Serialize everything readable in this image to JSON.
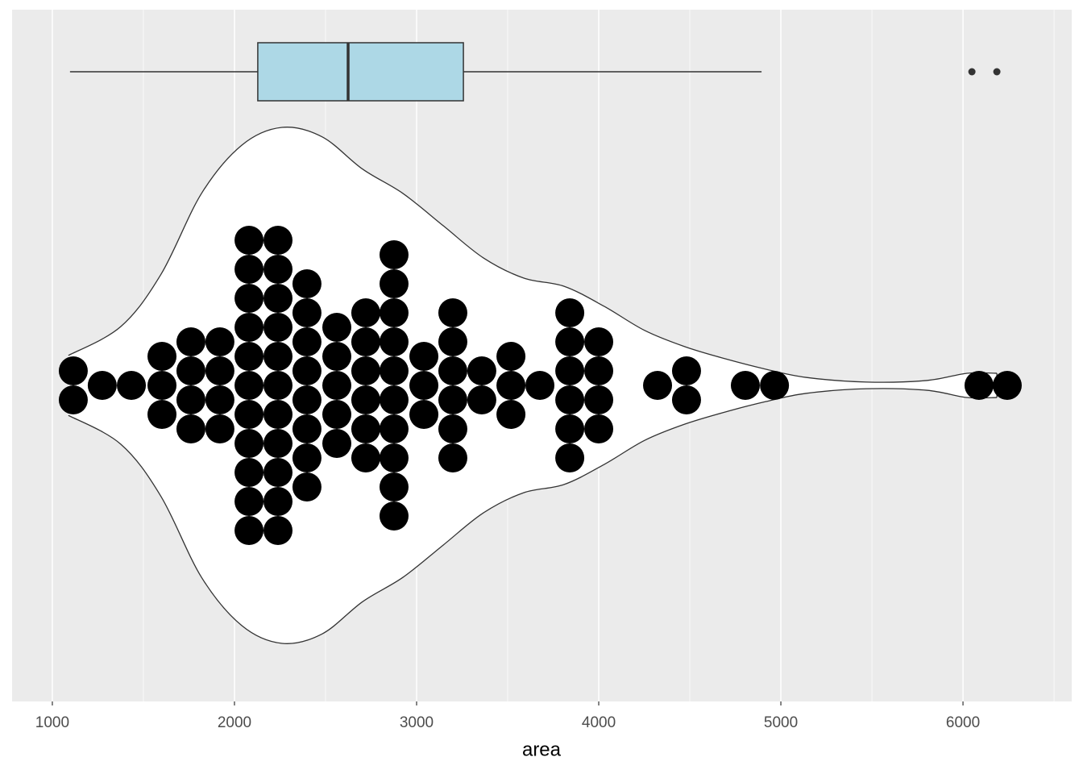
{
  "chart_data": {
    "type": "violin",
    "x_label": "area",
    "xlim": [
      779,
      6597
    ],
    "xticks": [
      1000,
      2000,
      3000,
      4000,
      5000,
      6000
    ],
    "xminor": [
      1500,
      2500,
      3500,
      4500,
      5500,
      6500
    ],
    "grid": true,
    "violin": {
      "x": [
        1088,
        1376,
        1597,
        1819,
        2040,
        2261,
        2482,
        2704,
        2925,
        3146,
        3367,
        3588,
        3810,
        4031,
        4252,
        4473,
        4695,
        4916,
        5137,
        5469,
        5801,
        6022,
        6186
      ],
      "density": [
        0.116,
        0.228,
        0.431,
        0.744,
        0.931,
        1.0,
        0.963,
        0.838,
        0.744,
        0.619,
        0.494,
        0.416,
        0.384,
        0.306,
        0.213,
        0.15,
        0.103,
        0.063,
        0.031,
        0.013,
        0.019,
        0.047,
        0.047
      ],
      "color": "#ffffff"
    },
    "dots": {
      "x": [
        1115,
        1274,
        1434,
        1602,
        1761,
        1920,
        2080,
        2239,
        2398,
        2562,
        2721,
        2876,
        3040,
        3199,
        3358,
        3518,
        3677,
        3841,
        4000,
        4323,
        4482,
        4805,
        4965,
        6088,
        6243
      ],
      "counts": [
        2,
        1,
        1,
        3,
        4,
        4,
        11,
        11,
        8,
        5,
        6,
        10,
        3,
        6,
        2,
        3,
        1,
        6,
        4,
        1,
        2,
        1,
        1,
        1,
        1
      ],
      "color": "#000000"
    },
    "box": {
      "whisker_low": 1097,
      "q1": 2128,
      "median": 2624,
      "q3": 3257,
      "whisker_high": 4894,
      "outliers": [
        6049,
        6186
      ],
      "color": "#add8e6"
    }
  }
}
